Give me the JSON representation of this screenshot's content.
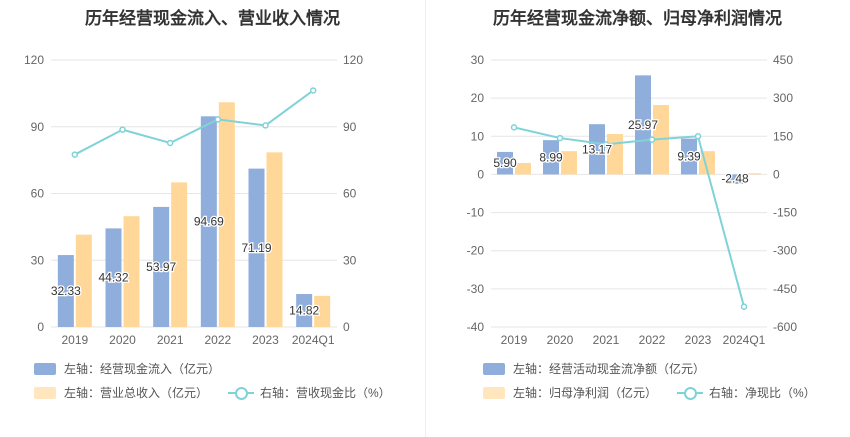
{
  "chart_data": [
    {
      "type": "bar",
      "title": "历年经营现金流入、营业收入情况",
      "categories": [
        "2019",
        "2020",
        "2021",
        "2022",
        "2023",
        "2024Q1"
      ],
      "series": [
        {
          "name": "左轴：经营现金流入（亿元）",
          "axis": "left",
          "values": [
            32.33,
            44.32,
            53.97,
            94.69,
            71.19,
            14.82
          ],
          "color": "#8faedc",
          "labels": [
            "32.33",
            "44.32",
            "53.97",
            "94.69",
            "71.19",
            "14.82"
          ]
        },
        {
          "name": "左轴：营业总收入（亿元）",
          "axis": "left",
          "values": [
            41.5,
            49.8,
            65,
            101,
            78.5,
            14
          ],
          "color": "#ffd899"
        },
        {
          "name": "右轴：营收现金比（%）",
          "axis": "right",
          "type": "line",
          "values": [
            77.5,
            88.7,
            82.7,
            93.3,
            90.6,
            106.3
          ],
          "color": "#7fd3d8"
        }
      ],
      "left_axis": {
        "min": 0,
        "max": 120,
        "ticks": [
          "0",
          "30",
          "60",
          "90",
          "120"
        ]
      },
      "right_axis": {
        "min": 0,
        "max": 120,
        "ticks": [
          "0",
          "30",
          "60",
          "90",
          "120"
        ]
      }
    },
    {
      "type": "bar",
      "title": "历年经营现金流净额、归母净利润情况",
      "categories": [
        "2019",
        "2020",
        "2021",
        "2022",
        "2023",
        "2024Q1"
      ],
      "series": [
        {
          "name": "左轴：经营活动现金流净额（亿元）",
          "axis": "left",
          "values": [
            5.9,
            8.99,
            13.17,
            25.97,
            9.39,
            -2.48
          ],
          "color": "#8faedc",
          "labels": [
            "5.90",
            "8.99",
            "13.17",
            "25.97",
            "9.39",
            "-2.48"
          ]
        },
        {
          "name": "左轴：归母净利润（亿元）",
          "axis": "left",
          "values": [
            3.0,
            6.1,
            10.6,
            18.2,
            6.1,
            0.3
          ],
          "color": "#ffd899"
        },
        {
          "name": "右轴：净现比（%）",
          "axis": "right",
          "type": "line",
          "values": [
            185,
            143,
            118,
            137,
            150,
            -520
          ],
          "color": "#7fd3d8"
        }
      ],
      "left_axis": {
        "min": -40,
        "max": 30,
        "ticks": [
          "-40",
          "-30",
          "-20",
          "-10",
          "0",
          "10",
          "20",
          "30"
        ]
      },
      "right_axis": {
        "min": -600,
        "max": 450,
        "ticks": [
          "-600",
          "-450",
          "-300",
          "-150",
          "0",
          "150",
          "300",
          "450"
        ]
      }
    }
  ]
}
